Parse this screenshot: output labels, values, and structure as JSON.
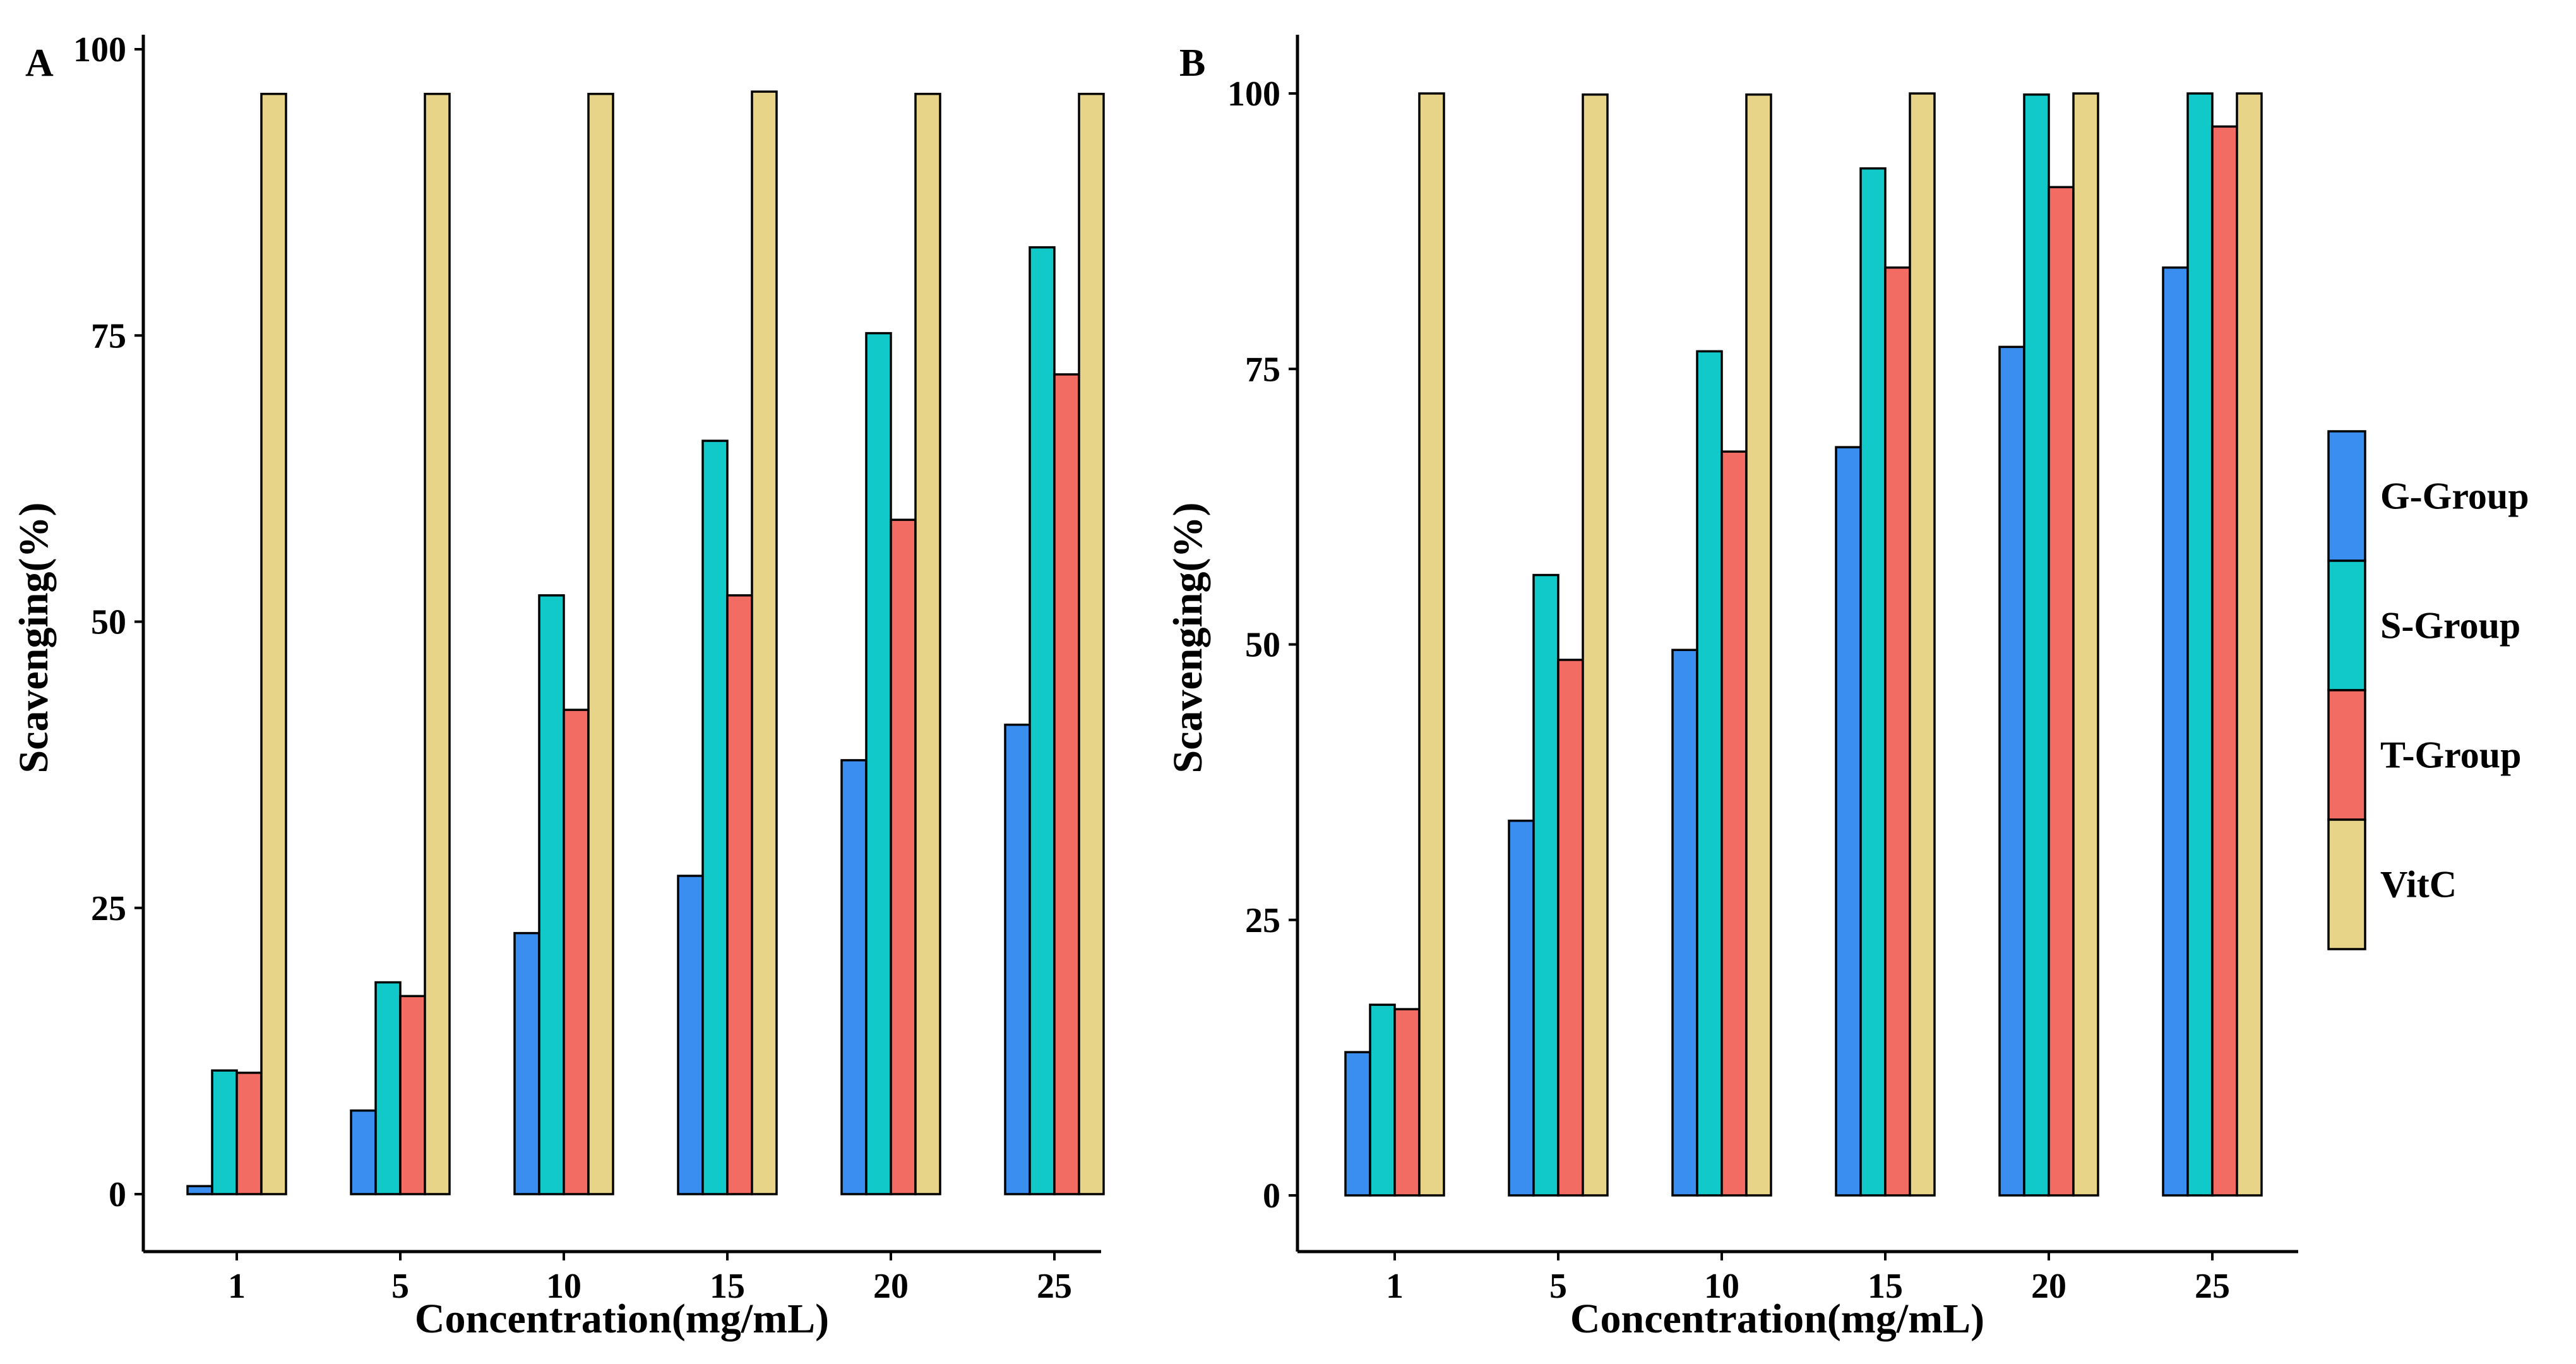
{
  "figure": {
    "series_colors": {
      "G-Group": "#3a8ef0",
      "S-Group": "#12c9c9",
      "T-Group": "#f36c64",
      "VitC": "#e7d489"
    },
    "legend": [
      {
        "name": "G-Group",
        "color": "#3a8ef0"
      },
      {
        "name": "S-Group",
        "color": "#12c9c9"
      },
      {
        "name": "T-Group",
        "color": "#f36c64"
      },
      {
        "name": "VitC",
        "color": "#e7d489"
      }
    ]
  },
  "chart_data": [
    {
      "type": "bar",
      "panel_label": "A",
      "title": "",
      "xlabel": "Concentration(mg/mL)",
      "ylabel": "Scavenging(%)",
      "ylim": [
        0,
        100
      ],
      "yticks": [
        "0",
        "25",
        "50",
        "75",
        "100"
      ],
      "categories": [
        "1",
        "5",
        "10",
        "15",
        "20",
        "25"
      ],
      "series": [
        {
          "name": "G-Group",
          "values": [
            0.7,
            7.3,
            22.8,
            27.8,
            37.9,
            41.0
          ]
        },
        {
          "name": "S-Group",
          "values": [
            10.8,
            18.5,
            52.3,
            65.8,
            75.2,
            82.7
          ]
        },
        {
          "name": "T-Group",
          "values": [
            10.6,
            17.3,
            42.3,
            52.3,
            58.9,
            71.6
          ]
        },
        {
          "name": "VitC",
          "values": [
            96.1,
            96.1,
            96.1,
            96.3,
            96.1,
            96.1
          ]
        }
      ]
    },
    {
      "type": "bar",
      "panel_label": "B",
      "title": "",
      "xlabel": "Concentration(mg/mL)",
      "ylabel": "Scavenging(%)",
      "ylim": [
        0,
        100
      ],
      "yticks": [
        "0",
        "25",
        "50",
        "75",
        "100"
      ],
      "categories": [
        "1",
        "5",
        "10",
        "15",
        "20",
        "25"
      ],
      "series": [
        {
          "name": "G-Group",
          "values": [
            13.0,
            34.0,
            49.5,
            67.9,
            77.0,
            84.2
          ]
        },
        {
          "name": "S-Group",
          "values": [
            17.3,
            56.3,
            76.6,
            93.2,
            99.9,
            100.0
          ]
        },
        {
          "name": "T-Group",
          "values": [
            16.9,
            48.6,
            67.5,
            84.2,
            91.5,
            97.0
          ]
        },
        {
          "name": "VitC",
          "values": [
            100.0,
            99.9,
            99.9,
            100.0,
            100.0,
            100.0
          ]
        }
      ]
    }
  ]
}
